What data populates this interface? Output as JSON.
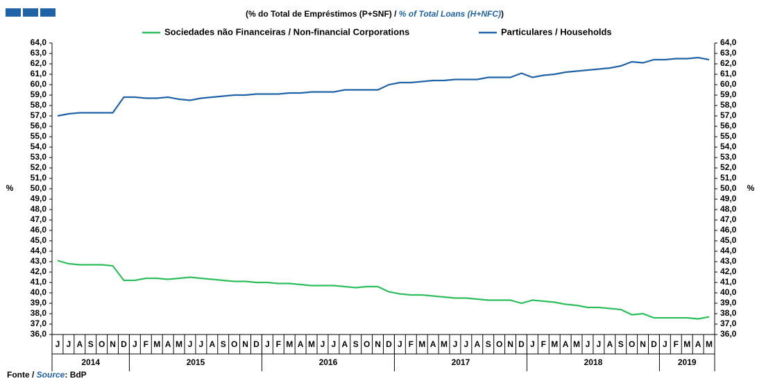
{
  "chart_data": {
    "type": "line",
    "title_parts": [
      "(% do Total de Empréstimos (P+SNF)  / ",
      "% of Total Loans (H+NFC)",
      ")"
    ],
    "source_parts": [
      "Fonte / ",
      "Source",
      ": BdP"
    ],
    "y_label": "%",
    "y2_label": "%",
    "categories": [
      "J",
      "J",
      "A",
      "S",
      "O",
      "N",
      "D",
      "J",
      "F",
      "M",
      "A",
      "M",
      "J",
      "J",
      "A",
      "S",
      "O",
      "N",
      "D",
      "J",
      "F",
      "M",
      "A",
      "M",
      "J",
      "J",
      "A",
      "S",
      "O",
      "N",
      "D",
      "J",
      "F",
      "M",
      "A",
      "M",
      "J",
      "J",
      "A",
      "S",
      "O",
      "N",
      "D",
      "J",
      "F",
      "M",
      "A",
      "M",
      "J",
      "J",
      "A",
      "S",
      "O",
      "N",
      "D",
      "J",
      "F",
      "M",
      "A",
      "M"
    ],
    "year_labels": [
      "2014",
      "2015",
      "2016",
      "2017",
      "2018",
      "2019"
    ],
    "series": [
      {
        "name": "Sociedades não Financeiras / Non-financial Corporations",
        "color": "#2cbe5c",
        "values": [
          43.1,
          42.8,
          42.7,
          42.7,
          42.7,
          42.6,
          41.2,
          41.2,
          41.4,
          41.4,
          41.3,
          41.4,
          41.5,
          41.4,
          41.3,
          41.2,
          41.1,
          41.1,
          41.0,
          41.0,
          40.9,
          40.9,
          40.8,
          40.7,
          40.7,
          40.7,
          40.6,
          40.5,
          40.6,
          40.6,
          40.1,
          39.9,
          39.8,
          39.8,
          39.7,
          39.6,
          39.5,
          39.5,
          39.4,
          39.3,
          39.3,
          39.3,
          39.0,
          39.3,
          39.2,
          39.1,
          38.9,
          38.8,
          38.6,
          38.6,
          38.5,
          38.4,
          37.9,
          38.0,
          37.6,
          37.6,
          37.6,
          37.6,
          37.5,
          37.7
        ]
      },
      {
        "name": "Particulares / Households",
        "color": "#1f62a6",
        "values": [
          57.0,
          57.2,
          57.3,
          57.3,
          57.3,
          57.3,
          58.8,
          58.8,
          58.7,
          58.7,
          58.8,
          58.6,
          58.5,
          58.7,
          58.8,
          58.9,
          59.0,
          59.0,
          59.1,
          59.1,
          59.1,
          59.2,
          59.2,
          59.3,
          59.3,
          59.3,
          59.5,
          59.5,
          59.5,
          59.5,
          60.0,
          60.2,
          60.2,
          60.3,
          60.4,
          60.4,
          60.5,
          60.5,
          60.5,
          60.7,
          60.7,
          60.7,
          61.1,
          60.7,
          60.9,
          61.0,
          61.2,
          61.3,
          61.4,
          61.5,
          61.6,
          61.8,
          62.2,
          62.1,
          62.4,
          62.4,
          62.5,
          62.5,
          62.6,
          62.4
        ]
      }
    ],
    "ylim": [
      36,
      64
    ],
    "yticks": [
      {
        "value": 36,
        "label": "36,0"
      },
      {
        "value": 37,
        "label": "37,0"
      },
      {
        "value": 38,
        "label": "38,0"
      },
      {
        "value": 39,
        "label": "39,0"
      },
      {
        "value": 40,
        "label": "40,0"
      },
      {
        "value": 41,
        "label": "41,0"
      },
      {
        "value": 42,
        "label": "42,0"
      },
      {
        "value": 43,
        "label": "43,0"
      },
      {
        "value": 44,
        "label": "44,0"
      },
      {
        "value": 45,
        "label": "45,0"
      },
      {
        "value": 46,
        "label": "46,0"
      },
      {
        "value": 47,
        "label": "47,0"
      },
      {
        "value": 48,
        "label": "48,0"
      },
      {
        "value": 49,
        "label": "49,0"
      },
      {
        "value": 50,
        "label": "50,0"
      },
      {
        "value": 51,
        "label": "51,0"
      },
      {
        "value": 52,
        "label": "52,0"
      },
      {
        "value": 53,
        "label": "53,0"
      },
      {
        "value": 54,
        "label": "54,0"
      },
      {
        "value": 55,
        "label": "55,0"
      },
      {
        "value": 56,
        "label": "56,0"
      },
      {
        "value": 57,
        "label": "57,0"
      },
      {
        "value": 58,
        "label": "58,0"
      },
      {
        "value": 59,
        "label": "59,0"
      },
      {
        "value": 60,
        "label": "60,0"
      },
      {
        "value": 61,
        "label": "61,0"
      },
      {
        "value": 62,
        "label": "62,0"
      },
      {
        "value": 63,
        "label": "63,0"
      },
      {
        "value": 64,
        "label": "64,0"
      }
    ],
    "y2lim": [
      36,
      64
    ],
    "y2ticks": [
      {
        "value": 36,
        "label": "36,0"
      },
      {
        "value": 37,
        "label": "37,0"
      },
      {
        "value": 38,
        "label": "38,0"
      },
      {
        "value": 39,
        "label": "39,0"
      },
      {
        "value": 40,
        "label": "40,0"
      },
      {
        "value": 41,
        "label": "41,0"
      },
      {
        "value": 42,
        "label": "42,0"
      },
      {
        "value": 43,
        "label": "43,0"
      },
      {
        "value": 44,
        "label": "44,0"
      },
      {
        "value": 45,
        "label": "45,0"
      },
      {
        "value": 46,
        "label": "46,0"
      },
      {
        "value": 47,
        "label": "47,0"
      },
      {
        "value": 48,
        "label": "48,0"
      },
      {
        "value": 49,
        "label": "49,0"
      },
      {
        "value": 50,
        "label": "50,0"
      },
      {
        "value": 51,
        "label": "51,0"
      },
      {
        "value": 52,
        "label": "52,0"
      },
      {
        "value": 53,
        "label": "53,0"
      },
      {
        "value": 54,
        "label": "54,0"
      },
      {
        "value": 55,
        "label": "55,0"
      },
      {
        "value": 56,
        "label": "56,0"
      },
      {
        "value": 57,
        "label": "57,0"
      },
      {
        "value": 58,
        "label": "58,0"
      },
      {
        "value": 59,
        "label": "59,0"
      },
      {
        "value": 60,
        "label": "60,0"
      },
      {
        "value": 61,
        "label": "61,0"
      },
      {
        "value": 62,
        "label": "62,0"
      },
      {
        "value": 63,
        "label": "63,0"
      },
      {
        "value": 64,
        "label": "64,0"
      }
    ],
    "grid": false
  }
}
